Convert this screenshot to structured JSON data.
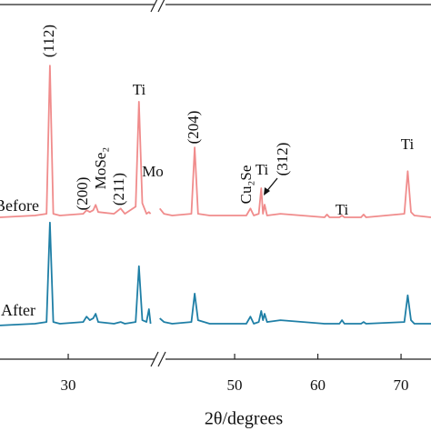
{
  "chart_data": {
    "type": "line",
    "x_label": "2θ/degrees",
    "x": [
      21.8,
      26,
      27.4,
      27.8,
      28.2,
      29,
      31.8,
      32.2,
      32.6,
      33.0,
      33.3,
      33.6,
      35.5,
      36.3,
      36.8,
      38.1,
      38.5,
      38.9,
      39.4,
      39.7,
      39.9,
      40.4,
      41.0,
      41.5,
      42.5,
      44.8,
      45.2,
      45.6,
      47,
      51.4,
      51.9,
      52.3,
      52.9,
      53.2,
      53.4,
      53.6,
      53.9,
      55.5,
      60.8,
      61.1,
      61.4,
      62.6,
      62.9,
      63.2,
      65.2,
      65.5,
      65.8,
      70.4,
      70.8,
      71.2,
      71.6,
      73.6
    ],
    "series": [
      {
        "name": "Before",
        "color": "#f08c8c",
        "values": [
          40,
          40.5,
          41,
          82.8,
          41,
          40.5,
          41,
          42,
          41.5,
          42,
          43.5,
          41.5,
          41,
          42.5,
          41,
          43,
          72.6,
          44,
          41,
          41.5,
          41,
          null,
          42.5,
          41,
          40.5,
          41,
          59.7,
          41,
          40.5,
          40.5,
          42.5,
          40.5,
          41,
          48.2,
          41,
          43.6,
          40.5,
          41,
          40,
          40.8,
          40,
          40,
          40.5,
          40,
          40,
          40.8,
          40,
          41,
          53,
          41.5,
          40.5,
          40
        ]
      },
      {
        "name": "After",
        "color": "#1f7fa6",
        "values": [
          9.5,
          10,
          10.5,
          38.5,
          10.5,
          10,
          10.5,
          12,
          11,
          11.5,
          12.8,
          10.5,
          10,
          10.5,
          10,
          10.5,
          26.2,
          11,
          10.5,
          14.1,
          10,
          null,
          11.5,
          10.5,
          10,
          10.5,
          18.5,
          11,
          10,
          10,
          12,
          10,
          10.5,
          13.6,
          11,
          12.8,
          10.5,
          11,
          10,
          10,
          10,
          10,
          11,
          10,
          10,
          10.5,
          10,
          10.5,
          18,
          11,
          10,
          10
        ]
      }
    ],
    "xlim": [
      21.8,
      73.6
    ],
    "xticks": [
      30,
      50,
      60,
      70
    ],
    "ylim": [
      0,
      100
    ],
    "annotations": [
      "(112)",
      "(200)",
      "MoSe₂",
      "(211)",
      "Ti",
      "Mo",
      "(204)",
      "Cu₂Se",
      "Ti",
      "(312)",
      "Ti",
      "Ti"
    ]
  }
}
